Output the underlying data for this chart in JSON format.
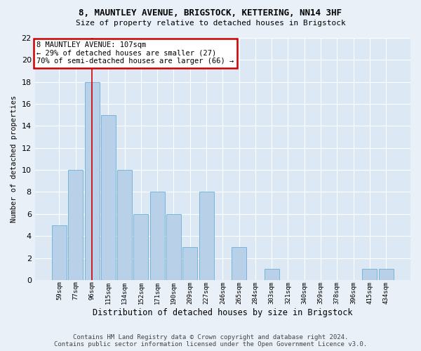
{
  "title1": "8, MAUNTLEY AVENUE, BRIGSTOCK, KETTERING, NN14 3HF",
  "title2": "Size of property relative to detached houses in Brigstock",
  "xlabel": "Distribution of detached houses by size in Brigstock",
  "ylabel": "Number of detached properties",
  "categories": [
    "59sqm",
    "77sqm",
    "96sqm",
    "115sqm",
    "134sqm",
    "152sqm",
    "171sqm",
    "190sqm",
    "209sqm",
    "227sqm",
    "246sqm",
    "265sqm",
    "284sqm",
    "303sqm",
    "321sqm",
    "340sqm",
    "359sqm",
    "378sqm",
    "396sqm",
    "415sqm",
    "434sqm"
  ],
  "values": [
    5,
    10,
    18,
    15,
    10,
    6,
    8,
    6,
    3,
    8,
    0,
    3,
    0,
    1,
    0,
    0,
    0,
    0,
    0,
    1,
    1
  ],
  "bar_color": "#b8d0e8",
  "bar_edge_color": "#6baed6",
  "highlight_bar_index": 2,
  "vline_color": "#cc0000",
  "annotation_text": "8 MAUNTLEY AVENUE: 107sqm\n← 29% of detached houses are smaller (27)\n70% of semi-detached houses are larger (66) →",
  "annotation_box_color": "#ffffff",
  "annotation_box_edge_color": "#cc0000",
  "ylim": [
    0,
    22
  ],
  "yticks": [
    0,
    2,
    4,
    6,
    8,
    10,
    12,
    14,
    16,
    18,
    20,
    22
  ],
  "footer1": "Contains HM Land Registry data © Crown copyright and database right 2024.",
  "footer2": "Contains public sector information licensed under the Open Government Licence v3.0.",
  "bg_color": "#eaf0f8",
  "plot_bg_color": "#dce8f4",
  "grid_color": "#ffffff"
}
